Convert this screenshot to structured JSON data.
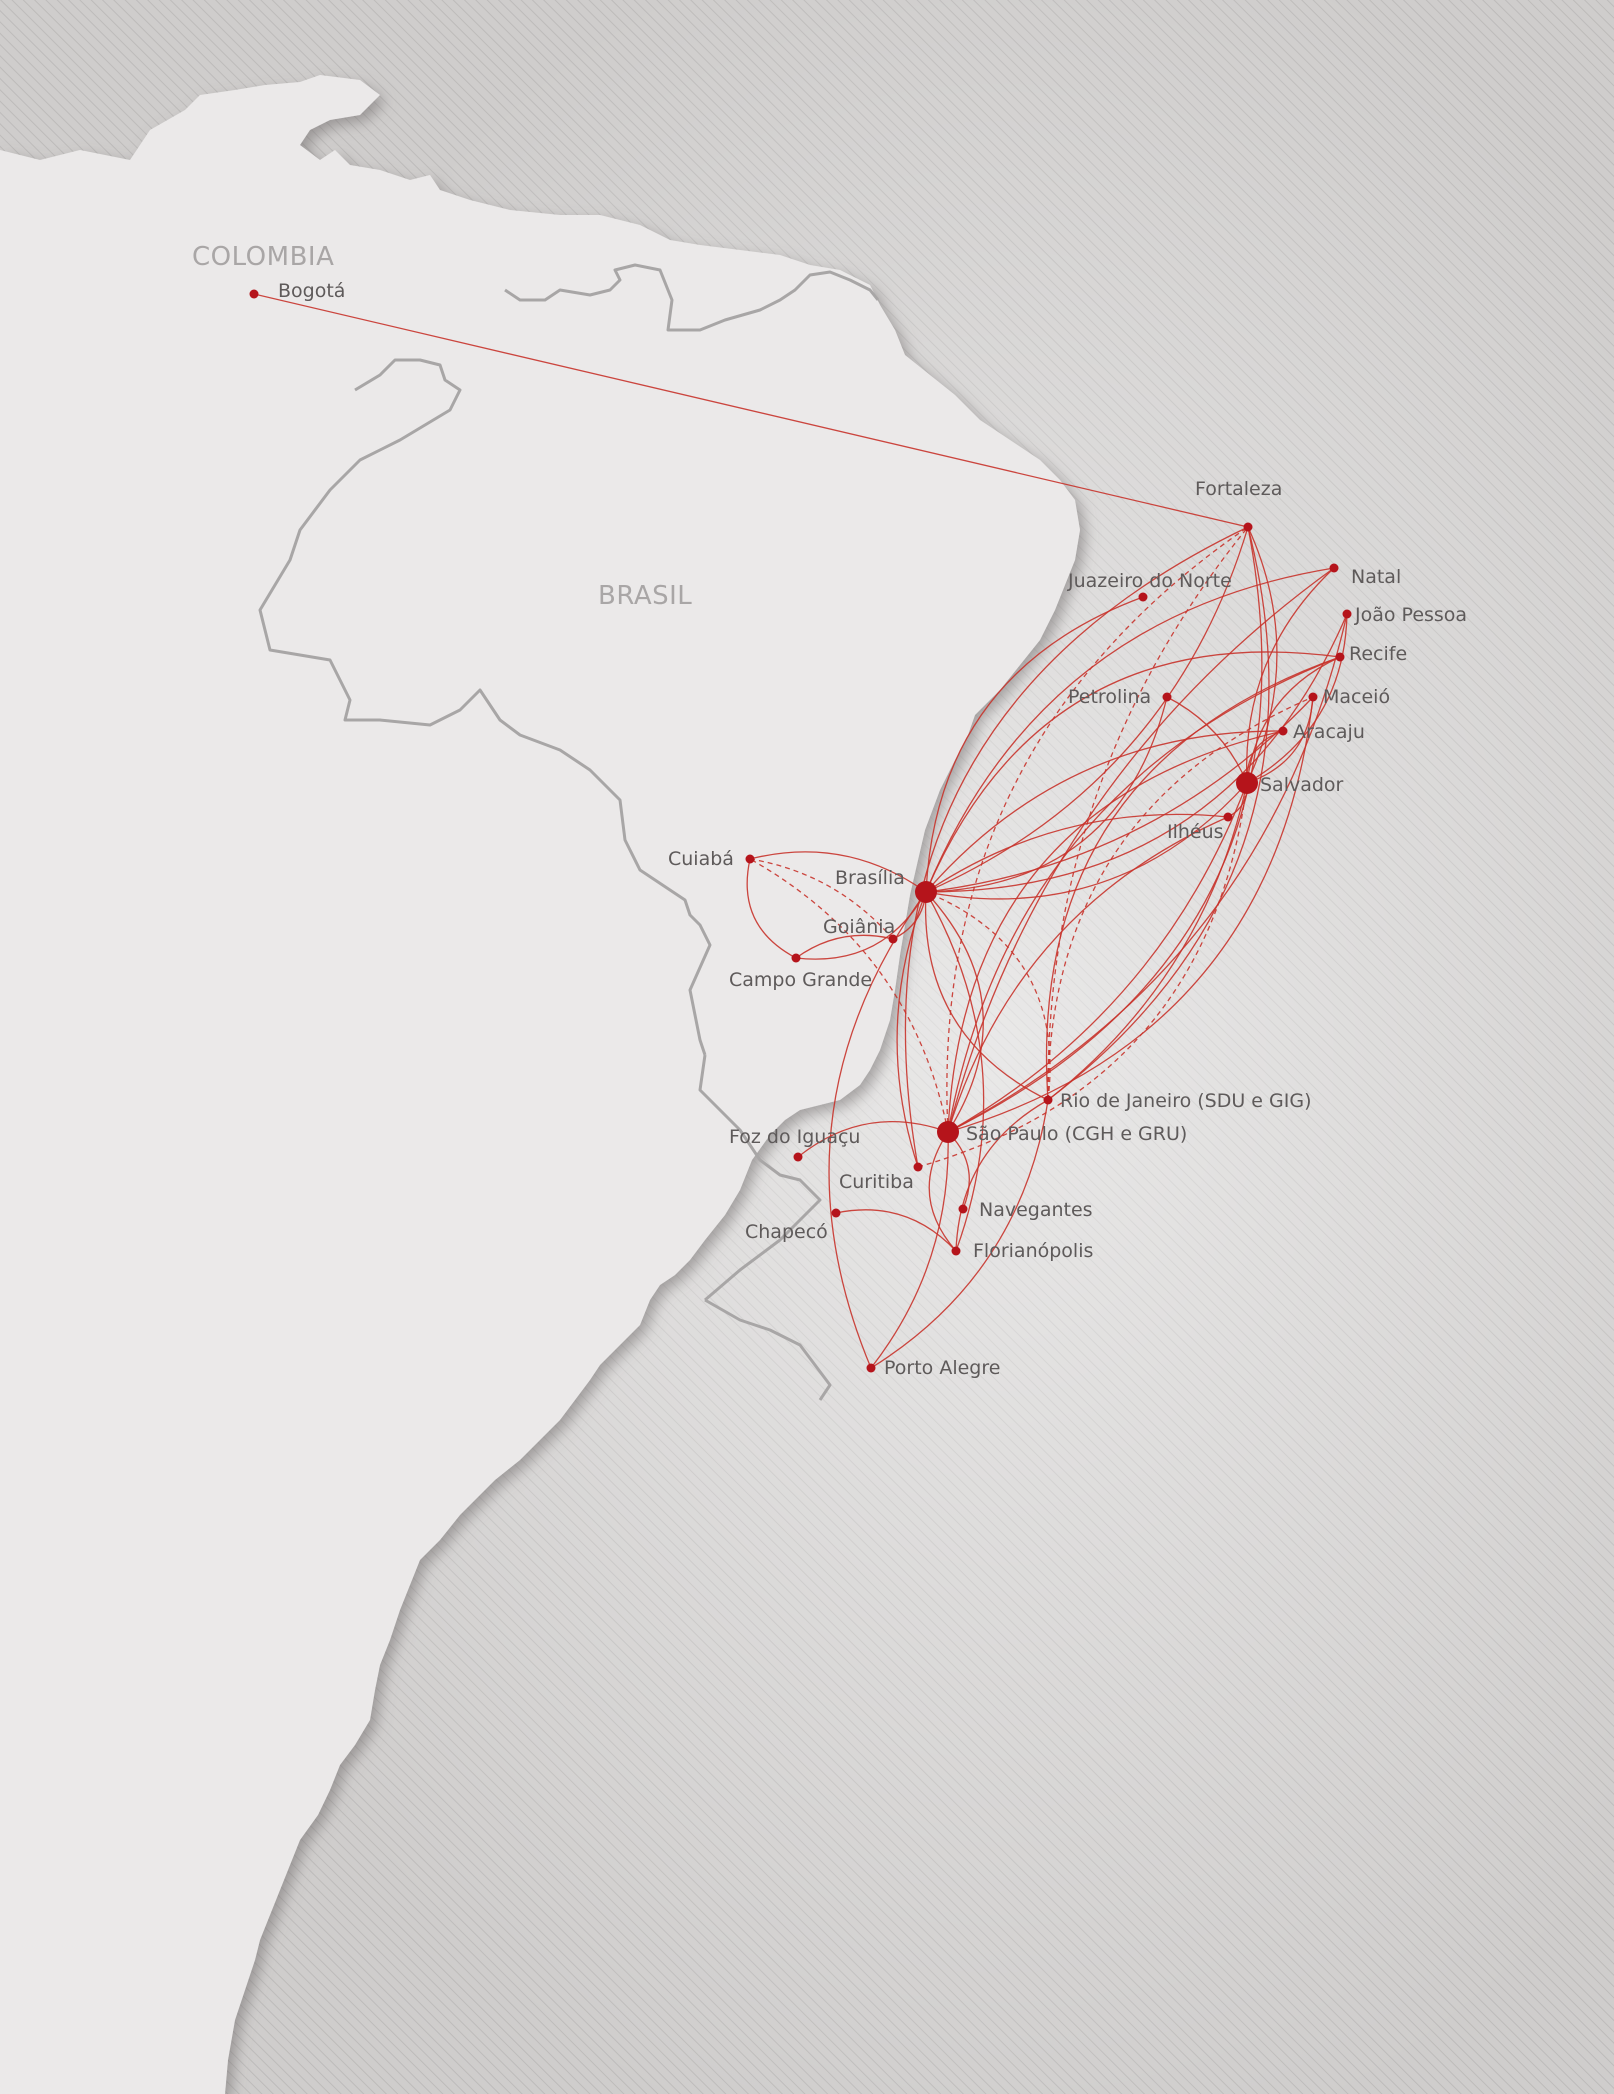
{
  "colors": {
    "background": "#cfcdcc",
    "land": "#ebe9e9",
    "land_shadow": "#9c9a9a",
    "border": "#a8a6a6",
    "route": "#c8332b",
    "city_dot": "#b5141b",
    "city_text": "#5e5a5a",
    "country_text": "#a9a6a6"
  },
  "map": {
    "countries": [
      {
        "id": "colombia",
        "label": "COLOMBIA"
      },
      {
        "id": "brasil",
        "label": "BRASIL"
      }
    ],
    "cities": [
      {
        "id": "bogota",
        "label": "Bogotá",
        "hub": false
      },
      {
        "id": "fortaleza",
        "label": "Fortaleza",
        "hub": false
      },
      {
        "id": "natal",
        "label": "Natal",
        "hub": false
      },
      {
        "id": "juazeiro",
        "label": "Juazeiro do Norte",
        "hub": false
      },
      {
        "id": "joao_pessoa",
        "label": "João Pessoa",
        "hub": false
      },
      {
        "id": "recife",
        "label": "Recife",
        "hub": false
      },
      {
        "id": "petrolina",
        "label": "Petrolina",
        "hub": false
      },
      {
        "id": "maceio",
        "label": "Maceió",
        "hub": false
      },
      {
        "id": "aracaju",
        "label": "Aracaju",
        "hub": false
      },
      {
        "id": "salvador",
        "label": "Salvador",
        "hub": true
      },
      {
        "id": "ilheus",
        "label": "Ilhéus",
        "hub": false
      },
      {
        "id": "cuiaba",
        "label": "Cuiabá",
        "hub": false
      },
      {
        "id": "brasilia",
        "label": "Brasília",
        "hub": true
      },
      {
        "id": "goiania",
        "label": "Goiânia",
        "hub": false
      },
      {
        "id": "campo_grande",
        "label": "Campo Grande",
        "hub": false
      },
      {
        "id": "rio",
        "label": "Rio de Janeiro (SDU e GIG)",
        "hub": false
      },
      {
        "id": "sao_paulo",
        "label": "São Paulo (CGH e GRU)",
        "hub": true
      },
      {
        "id": "foz",
        "label": "Foz do Iguaçu",
        "hub": false
      },
      {
        "id": "curitiba",
        "label": "Curitiba",
        "hub": false
      },
      {
        "id": "navegantes",
        "label": "Navegantes",
        "hub": false
      },
      {
        "id": "chapeco",
        "label": "Chapecó",
        "hub": false
      },
      {
        "id": "florianopolis",
        "label": "Florianópolis",
        "hub": false
      },
      {
        "id": "porto_alegre",
        "label": "Porto Alegre",
        "hub": false
      }
    ],
    "routes": [
      {
        "from": "bogota",
        "to": "fortaleza",
        "dashed": false
      },
      {
        "from": "brasilia",
        "to": "fortaleza",
        "dashed": false
      },
      {
        "from": "brasilia",
        "to": "natal",
        "dashed": false
      },
      {
        "from": "brasilia",
        "to": "joao_pessoa",
        "dashed": false
      },
      {
        "from": "brasilia",
        "to": "recife",
        "dashed": false
      },
      {
        "from": "brasilia",
        "to": "maceio",
        "dashed": false
      },
      {
        "from": "brasilia",
        "to": "aracaju",
        "dashed": false
      },
      {
        "from": "brasilia",
        "to": "salvador",
        "dashed": false
      },
      {
        "from": "brasilia",
        "to": "juazeiro",
        "dashed": false
      },
      {
        "from": "brasilia",
        "to": "petrolina",
        "dashed": false
      },
      {
        "from": "brasilia",
        "to": "ilheus",
        "dashed": false
      },
      {
        "from": "brasilia",
        "to": "cuiaba",
        "dashed": false
      },
      {
        "from": "brasilia",
        "to": "goiania",
        "dashed": false
      },
      {
        "from": "brasilia",
        "to": "rio",
        "dashed": false
      },
      {
        "from": "brasilia",
        "to": "sao_paulo",
        "dashed": false
      },
      {
        "from": "brasilia",
        "to": "curitiba",
        "dashed": false
      },
      {
        "from": "brasilia",
        "to": "florianopolis",
        "dashed": false
      },
      {
        "from": "brasilia",
        "to": "porto_alegre",
        "dashed": false
      },
      {
        "from": "brasilia",
        "to": "campo_grande",
        "dashed": false
      },
      {
        "from": "sao_paulo",
        "to": "fortaleza",
        "dashed": false
      },
      {
        "from": "sao_paulo",
        "to": "natal",
        "dashed": false
      },
      {
        "from": "sao_paulo",
        "to": "joao_pessoa",
        "dashed": false
      },
      {
        "from": "sao_paulo",
        "to": "recife",
        "dashed": false
      },
      {
        "from": "sao_paulo",
        "to": "maceio",
        "dashed": false
      },
      {
        "from": "sao_paulo",
        "to": "aracaju",
        "dashed": false
      },
      {
        "from": "sao_paulo",
        "to": "salvador",
        "dashed": false
      },
      {
        "from": "sao_paulo",
        "to": "ilheus",
        "dashed": false
      },
      {
        "from": "sao_paulo",
        "to": "foz",
        "dashed": false
      },
      {
        "from": "sao_paulo",
        "to": "navegantes",
        "dashed": false
      },
      {
        "from": "sao_paulo",
        "to": "florianopolis",
        "dashed": false
      },
      {
        "from": "sao_paulo",
        "to": "porto_alegre",
        "dashed": false
      },
      {
        "from": "sao_paulo",
        "to": "cuiaba",
        "dashed": true
      },
      {
        "from": "sao_paulo",
        "to": "fortaleza",
        "dashed": true
      },
      {
        "from": "rio",
        "to": "fortaleza",
        "dashed": false
      },
      {
        "from": "rio",
        "to": "recife",
        "dashed": false
      },
      {
        "from": "rio",
        "to": "salvador",
        "dashed": false
      },
      {
        "from": "rio",
        "to": "porto_alegre",
        "dashed": false
      },
      {
        "from": "rio",
        "to": "florianopolis",
        "dashed": false
      },
      {
        "from": "rio",
        "to": "maceio",
        "dashed": true
      },
      {
        "from": "rio",
        "to": "brasilia",
        "dashed": true
      },
      {
        "from": "rio",
        "to": "fortaleza",
        "dashed": true
      },
      {
        "from": "salvador",
        "to": "fortaleza",
        "dashed": false
      },
      {
        "from": "salvador",
        "to": "recife",
        "dashed": false
      },
      {
        "from": "salvador",
        "to": "maceio",
        "dashed": false
      },
      {
        "from": "salvador",
        "to": "aracaju",
        "dashed": false
      },
      {
        "from": "salvador",
        "to": "petrolina",
        "dashed": false
      },
      {
        "from": "salvador",
        "to": "natal",
        "dashed": false
      },
      {
        "from": "salvador",
        "to": "joao_pessoa",
        "dashed": false
      },
      {
        "from": "salvador",
        "to": "ilheus",
        "dashed": false
      },
      {
        "from": "cuiaba",
        "to": "campo_grande",
        "dashed": false
      },
      {
        "from": "cuiaba",
        "to": "goiania",
        "dashed": true
      },
      {
        "from": "goiania",
        "to": "campo_grande",
        "dashed": false
      },
      {
        "from": "chapeco",
        "to": "florianopolis",
        "dashed": false
      },
      {
        "from": "curitiba",
        "to": "salvador",
        "dashed": true
      },
      {
        "from": "curitiba",
        "to": "fortaleza",
        "dashed": false
      }
    ]
  }
}
